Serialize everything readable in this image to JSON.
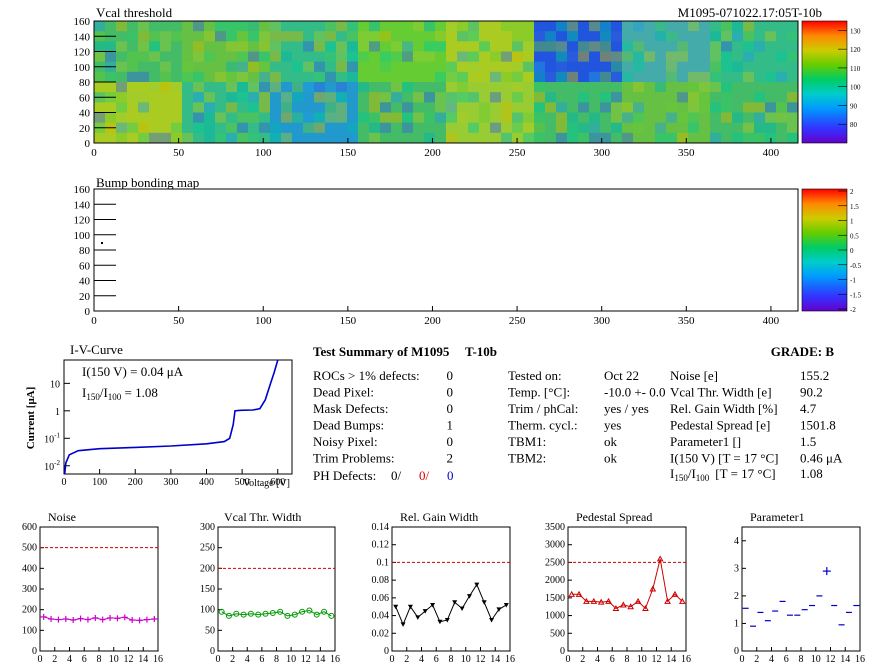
{
  "header": {
    "map_title": "Vcal threshold",
    "module_id": "M1095-071022.17:05T-10b",
    "bump_title": "Bump bonding map"
  },
  "map_axes": {
    "xticks": [
      "0",
      "50",
      "100",
      "150",
      "200",
      "250",
      "300",
      "350",
      "400"
    ],
    "yticks": [
      "0",
      "20",
      "40",
      "60",
      "80",
      "100",
      "120",
      "140",
      "160"
    ]
  },
  "colorbars": {
    "threshold": [
      "80",
      "90",
      "100",
      "110",
      "120",
      "130"
    ],
    "bump": [
      "2",
      "1.5",
      "1",
      "0.5",
      "0",
      "-0.5",
      "-1",
      "-1.5",
      "-2"
    ]
  },
  "iv_curve": {
    "title": "I-V-Curve",
    "ylabel": "Current [μA]",
    "xlabel": "Voltage [V]",
    "ann1": "I(150 V) = 0.04 μA",
    "ann2_main": "I",
    "ann2_sub1": "150",
    "ann2_sep": "/I",
    "ann2_sub2": "100",
    "ann2_val": " =  1.08",
    "xticks": [
      "0",
      "100",
      "200",
      "300",
      "400",
      "500",
      "600"
    ],
    "yticks": [
      {
        "base": "10",
        "exp": "-2"
      },
      {
        "base": "10",
        "exp": "-1"
      },
      {
        "base": "1",
        "exp": ""
      },
      {
        "base": "10",
        "exp": ""
      }
    ]
  },
  "summary": {
    "title": "Test Summary of M1095",
    "subtitle": "T-10b",
    "grade": "GRADE:  B",
    "left": [
      {
        "label": "ROCs > 1% defects:",
        "value": "0"
      },
      {
        "label": "Dead Pixel:",
        "value": "0"
      },
      {
        "label": "Mask Defects:",
        "value": "0"
      },
      {
        "label": "Dead Bumps:",
        "value": "1"
      },
      {
        "label": "Noisy Pixel:",
        "value": "0"
      },
      {
        "label": "Trim Problems:",
        "value": "2"
      }
    ],
    "ph": {
      "label": "PH Defects:",
      "v1": "0/",
      "v2": "0/",
      "v3": "0"
    },
    "mid": [
      {
        "label": "Tested on:",
        "value": "Oct 22"
      },
      {
        "label": "Temp. [°C]:",
        "value": "-10.0 +- 0.0"
      },
      {
        "label": "Trim / phCal:",
        "value": "yes / yes"
      },
      {
        "label": "Therm. cycl.:",
        "value": "yes"
      },
      {
        "label": "TBM1:",
        "value": "ok"
      },
      {
        "label": "TBM2:",
        "value": "ok"
      }
    ],
    "right": [
      {
        "label": "Noise [e]",
        "value": "155.2"
      },
      {
        "label": "Vcal Thr. Width [e]",
        "value": "90.2"
      },
      {
        "label": "Rel. Gain Width [%]",
        "value": "4.7"
      },
      {
        "label": "Pedestal Spread [e]",
        "value": "1501.8"
      },
      {
        "label": "Parameter1 []",
        "value": "1.5"
      },
      {
        "label": "I(150 V) [T = 17 °C]",
        "value": "0.46 μA"
      }
    ],
    "ratio": {
      "main": "I",
      "sub1": "150",
      "sep": "/I",
      "sub2": "100",
      "cond": "[T = 17 °C]",
      "value": "1.08"
    }
  },
  "chart_data": [
    {
      "type": "line",
      "title": "Noise",
      "color": "#cc00cc",
      "marker": "cross",
      "ylim": [
        0,
        600
      ],
      "yticks": [
        0,
        100,
        200,
        300,
        400,
        500,
        600
      ],
      "xlim": [
        0,
        16
      ],
      "xticks": [
        0,
        2,
        4,
        6,
        8,
        10,
        12,
        14,
        16
      ],
      "threshold": 500,
      "x": [
        0,
        1,
        2,
        3,
        4,
        5,
        6,
        7,
        8,
        9,
        10,
        11,
        12,
        13,
        14,
        15
      ],
      "values": [
        165,
        155,
        152,
        155,
        150,
        157,
        152,
        160,
        152,
        160,
        158,
        163,
        150,
        148,
        152,
        155
      ]
    },
    {
      "type": "line",
      "title": "Vcal Thr. Width",
      "color": "#009900",
      "marker": "circle",
      "ylim": [
        0,
        300
      ],
      "yticks": [
        0,
        50,
        100,
        150,
        200,
        250,
        300
      ],
      "xlim": [
        0,
        16
      ],
      "xticks": [
        0,
        2,
        4,
        6,
        8,
        10,
        12,
        14,
        16
      ],
      "threshold": 200,
      "x": [
        0,
        1,
        2,
        3,
        4,
        5,
        6,
        7,
        8,
        9,
        10,
        11,
        12,
        13,
        14,
        15
      ],
      "values": [
        95,
        85,
        90,
        88,
        90,
        88,
        90,
        92,
        95,
        85,
        88,
        95,
        98,
        88,
        95,
        85
      ]
    },
    {
      "type": "line",
      "title": "Rel. Gain Width",
      "color": "#000000",
      "marker": "triangle-down",
      "ylim": [
        0,
        0.14
      ],
      "yticks": [
        0,
        0.02,
        0.04,
        0.06,
        0.08,
        0.1,
        0.12,
        0.14
      ],
      "xlim": [
        0,
        16
      ],
      "xticks": [
        0,
        2,
        4,
        6,
        8,
        10,
        12,
        14,
        16
      ],
      "threshold": 0.1,
      "x": [
        0,
        1,
        2,
        3,
        4,
        5,
        6,
        7,
        8,
        9,
        10,
        11,
        12,
        13,
        14,
        15
      ],
      "values": [
        0.05,
        0.03,
        0.05,
        0.038,
        0.045,
        0.052,
        0.033,
        0.035,
        0.055,
        0.048,
        0.062,
        0.075,
        0.055,
        0.035,
        0.047,
        0.052
      ]
    },
    {
      "type": "line",
      "title": "Pedestal Spread",
      "color": "#cc0000",
      "marker": "triangle-up",
      "ylim": [
        0,
        3500
      ],
      "yticks": [
        0,
        500,
        1000,
        1500,
        2000,
        2500,
        3000,
        3500
      ],
      "xlim": [
        0,
        16
      ],
      "xticks": [
        0,
        2,
        4,
        6,
        8,
        10,
        12,
        14,
        16
      ],
      "threshold": 2500,
      "x": [
        0,
        1,
        2,
        3,
        4,
        5,
        6,
        7,
        8,
        9,
        10,
        11,
        12,
        13,
        14,
        15
      ],
      "values": [
        1600,
        1600,
        1400,
        1400,
        1380,
        1400,
        1200,
        1300,
        1250,
        1400,
        1200,
        1750,
        2600,
        1400,
        1600,
        1400
      ]
    },
    {
      "type": "scatter",
      "title": "Parameter1",
      "color": "#0000cc",
      "marker": "cross",
      "ylim": [
        0,
        4.5
      ],
      "yticks": [
        0,
        1,
        2,
        3,
        4
      ],
      "xlim": [
        0,
        16
      ],
      "xticks": [
        0,
        2,
        4,
        6,
        8,
        10,
        12,
        14,
        16
      ],
      "threshold": null,
      "x": [
        0,
        1,
        2,
        3,
        4,
        5,
        6,
        7,
        8,
        9,
        10,
        11,
        12,
        13,
        14,
        15
      ],
      "values": [
        1.55,
        0.9,
        1.4,
        1.1,
        1.45,
        1.8,
        1.3,
        1.3,
        1.5,
        1.65,
        2.0,
        2.9,
        1.65,
        0.95,
        1.4,
        1.65
      ]
    }
  ]
}
